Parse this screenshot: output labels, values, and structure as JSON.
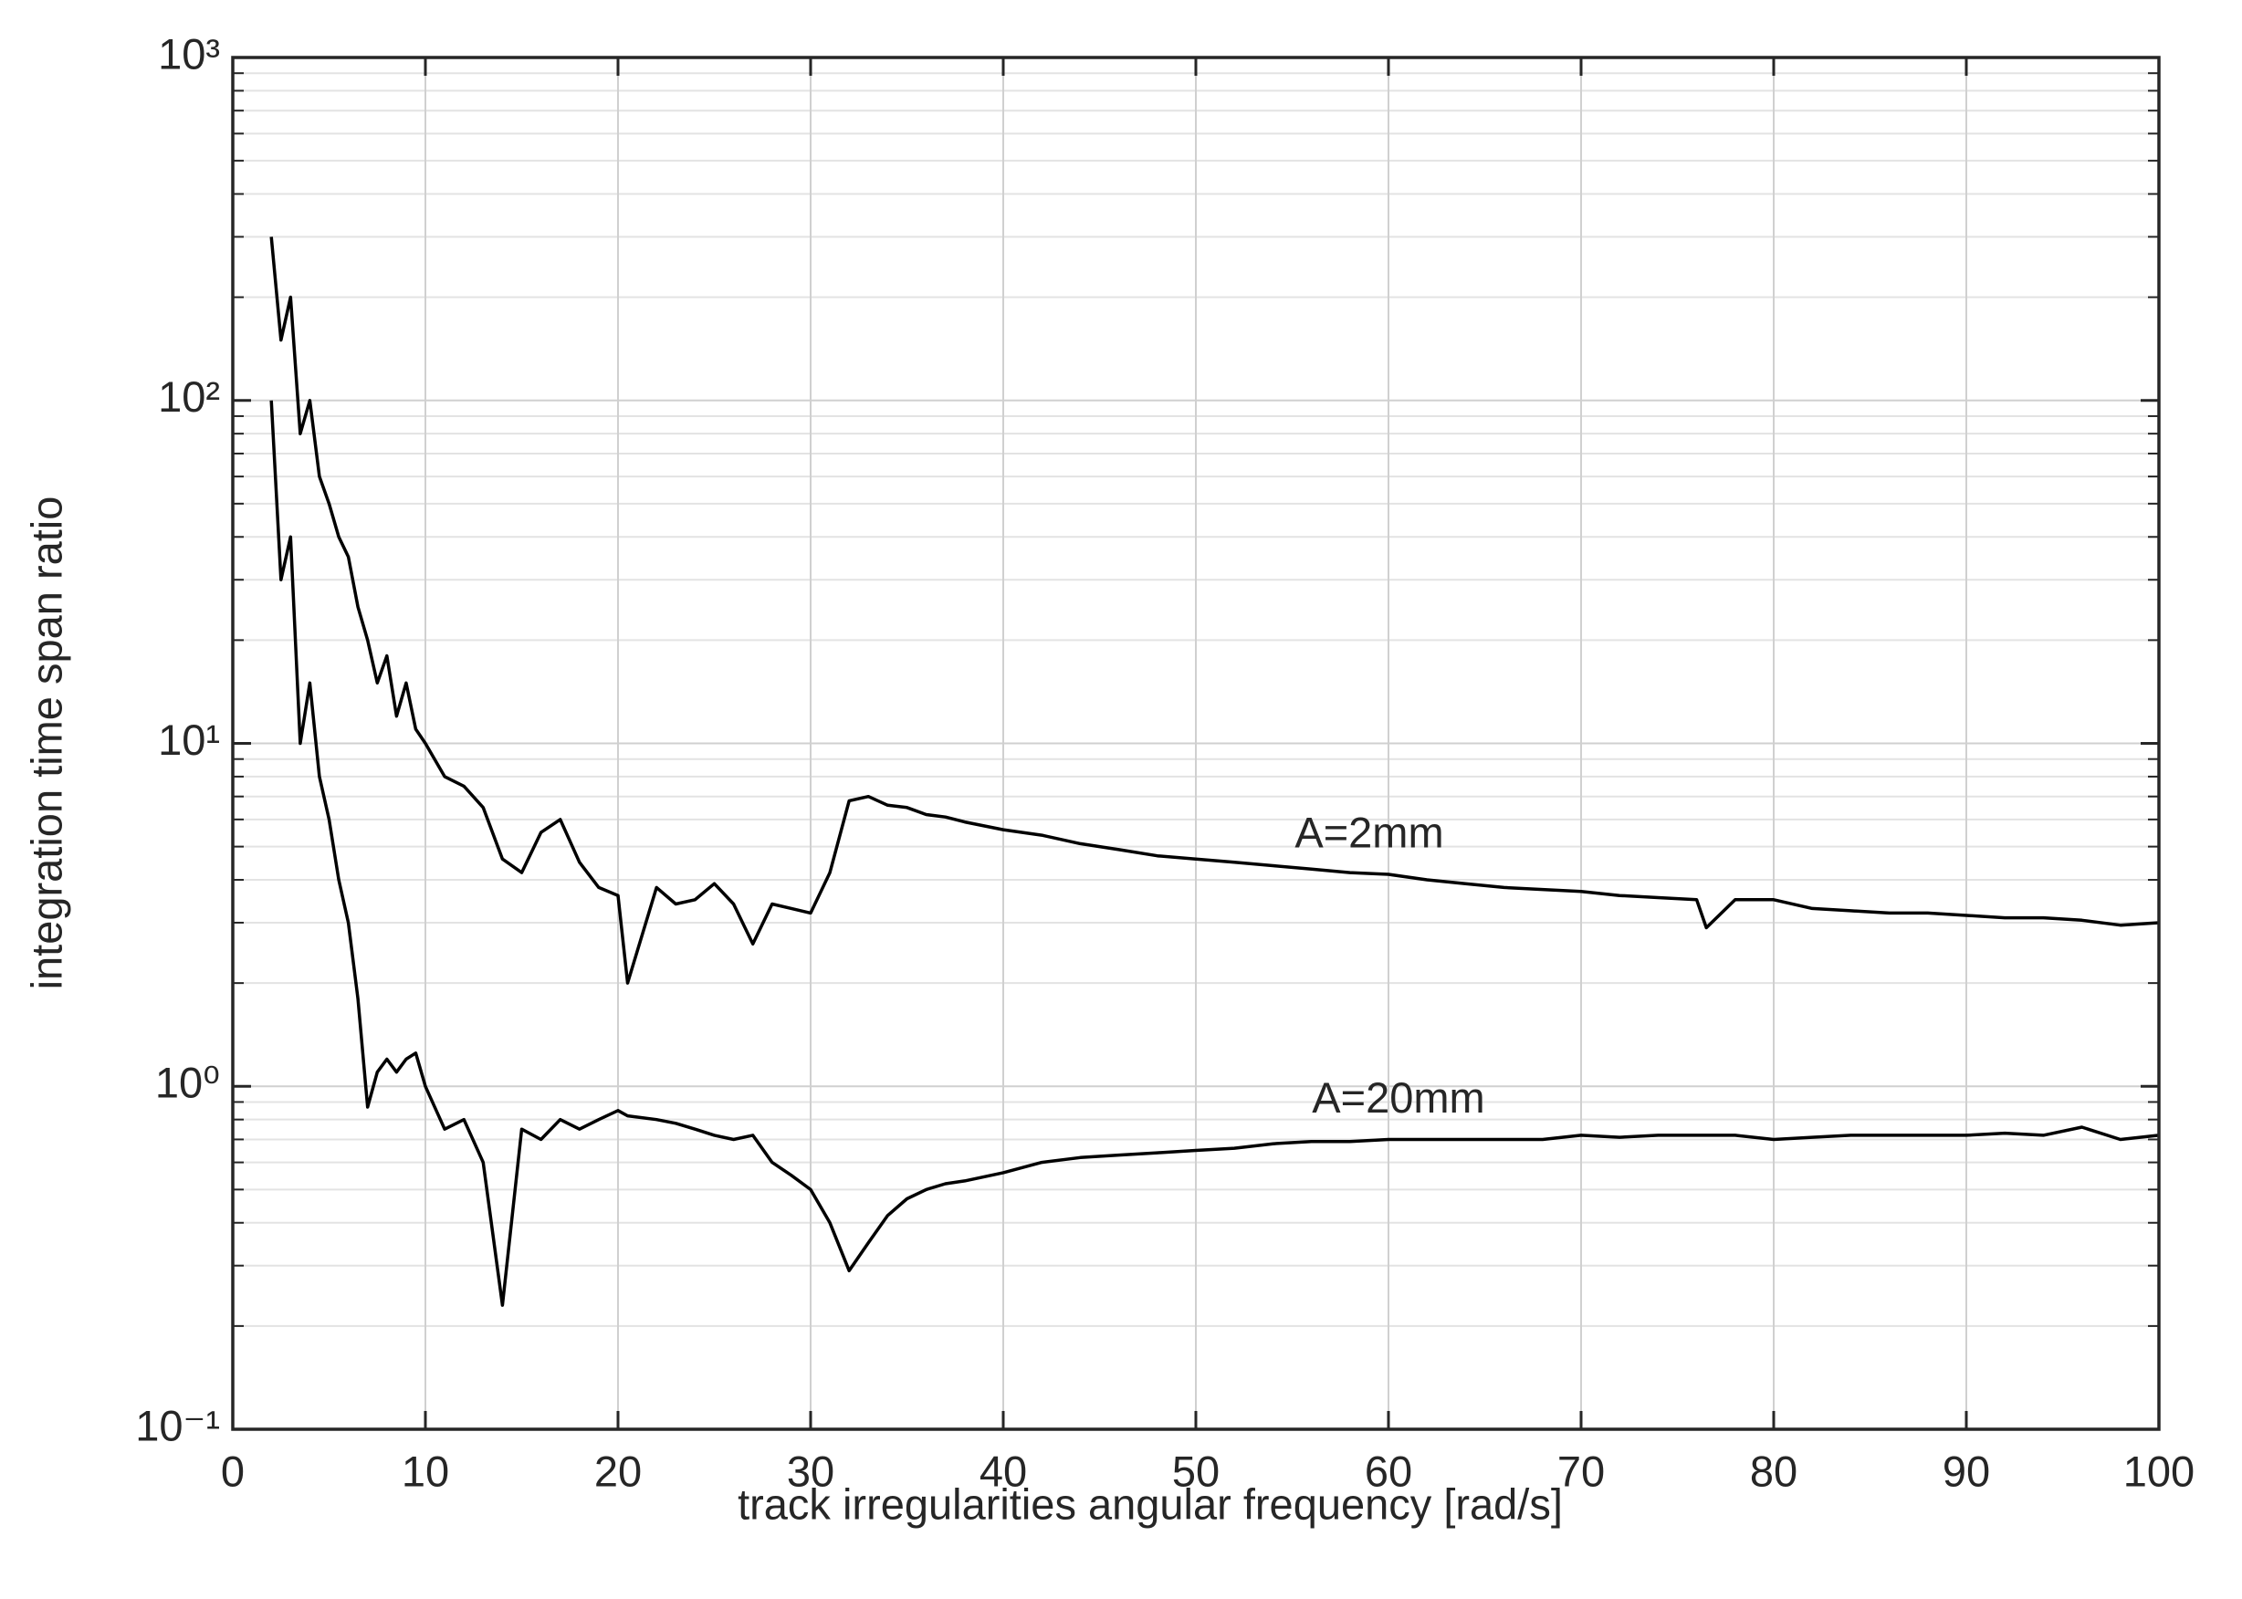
{
  "chart_data": {
    "type": "line",
    "xlabel": "track irregularities angular frequency [rad/s]",
    "ylabel": "integration time span ratio",
    "yscale": "log",
    "grid": true,
    "legend": "inline",
    "xlim": [
      0,
      100
    ],
    "xticks": [
      0,
      10,
      20,
      30,
      40,
      50,
      60,
      70,
      80,
      90,
      100
    ],
    "ylim": [
      0.1,
      1000
    ],
    "yticks": [
      {
        "value": 0.1,
        "label": "10⁻¹"
      },
      {
        "value": 1,
        "label": "10⁰"
      },
      {
        "value": 10,
        "label": "10¹"
      },
      {
        "value": 100,
        "label": "10²"
      },
      {
        "value": 1000,
        "label": "10³"
      }
    ],
    "yminorticks": [
      0.2,
      0.3,
      0.4,
      0.5,
      0.6,
      0.7,
      0.8,
      0.9,
      2,
      3,
      4,
      5,
      6,
      7,
      8,
      9,
      20,
      30,
      40,
      50,
      60,
      70,
      80,
      90,
      200,
      300,
      400,
      500,
      600,
      700,
      800,
      900
    ],
    "x": [
      2,
      2.5,
      3,
      3.5,
      4,
      4.5,
      5,
      5.5,
      6,
      6.5,
      7,
      7.5,
      8,
      8.5,
      9,
      9.5,
      10,
      11,
      12,
      13,
      14,
      15,
      16,
      17,
      18,
      19,
      20,
      20.5,
      22,
      23,
      24,
      25,
      26,
      27,
      28,
      29,
      30,
      31,
      32,
      33,
      34,
      35,
      36,
      37,
      38,
      40,
      42,
      44,
      46,
      48,
      50,
      52,
      54,
      56,
      58,
      60,
      62,
      64,
      66,
      68,
      70,
      72,
      74,
      76,
      76.5,
      78,
      80,
      82,
      84,
      86,
      88,
      90,
      92,
      94,
      96,
      98,
      100
    ],
    "series": [
      {
        "name": "A=2mm",
        "color": "#000000",
        "values": [
          300,
          150,
          200,
          80,
          100,
          60,
          50,
          40,
          35,
          25,
          20,
          15,
          18,
          12,
          15,
          11,
          10,
          8,
          7.5,
          6.5,
          4.6,
          4.2,
          5.5,
          6,
          4.5,
          3.8,
          3.6,
          2.0,
          3.8,
          3.4,
          3.5,
          3.9,
          3.4,
          2.6,
          3.4,
          3.3,
          3.2,
          4.2,
          6.8,
          7.0,
          6.6,
          6.5,
          6.2,
          6.1,
          5.9,
          5.6,
          5.4,
          5.1,
          4.9,
          4.7,
          4.6,
          4.5,
          4.4,
          4.3,
          4.2,
          4.15,
          4.0,
          3.9,
          3.8,
          3.75,
          3.7,
          3.6,
          3.55,
          3.5,
          2.9,
          3.5,
          3.5,
          3.3,
          3.25,
          3.2,
          3.2,
          3.15,
          3.1,
          3.1,
          3.05,
          2.95,
          3.0
        ]
      },
      {
        "name": "A=20mm",
        "color": "#000000",
        "values": [
          100,
          30,
          40,
          10,
          15,
          8,
          6,
          4,
          3,
          1.8,
          0.87,
          1.1,
          1.2,
          1.1,
          1.2,
          1.25,
          1.0,
          0.75,
          0.8,
          0.6,
          0.23,
          0.75,
          0.7,
          0.8,
          0.75,
          0.8,
          0.85,
          0.82,
          0.8,
          0.78,
          0.75,
          0.72,
          0.7,
          0.72,
          0.6,
          0.55,
          0.5,
          0.4,
          0.29,
          0.35,
          0.42,
          0.47,
          0.5,
          0.52,
          0.53,
          0.56,
          0.6,
          0.62,
          0.63,
          0.64,
          0.65,
          0.66,
          0.68,
          0.69,
          0.69,
          0.7,
          0.7,
          0.7,
          0.7,
          0.7,
          0.72,
          0.71,
          0.72,
          0.72,
          0.72,
          0.72,
          0.7,
          0.71,
          0.72,
          0.72,
          0.72,
          0.72,
          0.73,
          0.72,
          0.76,
          0.7,
          0.72
        ]
      }
    ]
  }
}
